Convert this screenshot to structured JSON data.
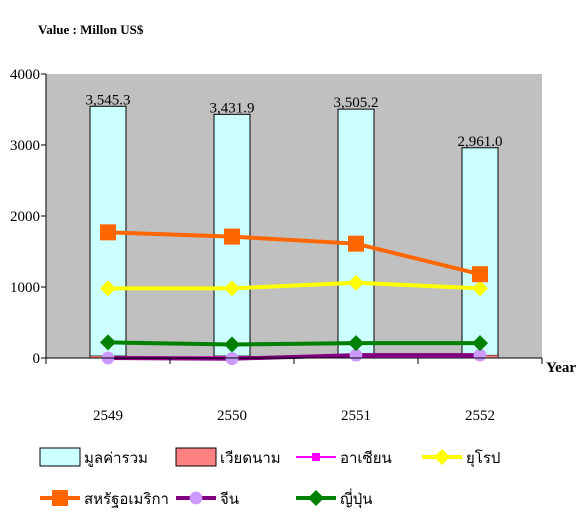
{
  "unit_title": "Value : Millon US$",
  "chart_data": {
    "type": "bar",
    "categories": [
      "2549",
      "2550",
      "2551",
      "2552"
    ],
    "xlabel": "Year",
    "ylabel": "",
    "ylim": [
      0,
      4000
    ],
    "yticks": [
      0,
      1000,
      2000,
      3000,
      4000
    ],
    "plot_background": "#c0c0c0",
    "grid": false,
    "legend_position": "bottom",
    "bar_series": {
      "name": "มูลค่ารวม",
      "values": [
        3545.3,
        3431.9,
        3505.2,
        2961.0
      ],
      "labels": [
        "3,545.3",
        "3,431.9",
        "3,505.2",
        "2,961.0"
      ],
      "color": "#ccffff"
    },
    "bar_series_2": {
      "name": "เวียดนาม",
      "values": [
        30,
        30,
        40,
        40
      ],
      "color": "#ff8080"
    },
    "series": [
      {
        "name": "อาเซียน",
        "values": [
          10,
          10,
          20,
          20
        ],
        "color": "#ff00ff",
        "marker": "square"
      },
      {
        "name": "ยุโรป",
        "values": [
          980,
          980,
          1060,
          980
        ],
        "color": "#ffff00",
        "marker": "diamond"
      },
      {
        "name": "สหรัฐอเมริกา",
        "values": [
          1770,
          1710,
          1610,
          1180
        ],
        "color": "#ff6600",
        "marker": "square"
      },
      {
        "name": "จีน",
        "values": [
          0,
          -10,
          40,
          40
        ],
        "color": "#cc99ff",
        "line_color": "#800080",
        "marker": "circle"
      },
      {
        "name": "ญี่ปุ่น",
        "values": [
          220,
          190,
          210,
          210
        ],
        "color": "#008000",
        "marker": "diamond"
      }
    ]
  }
}
